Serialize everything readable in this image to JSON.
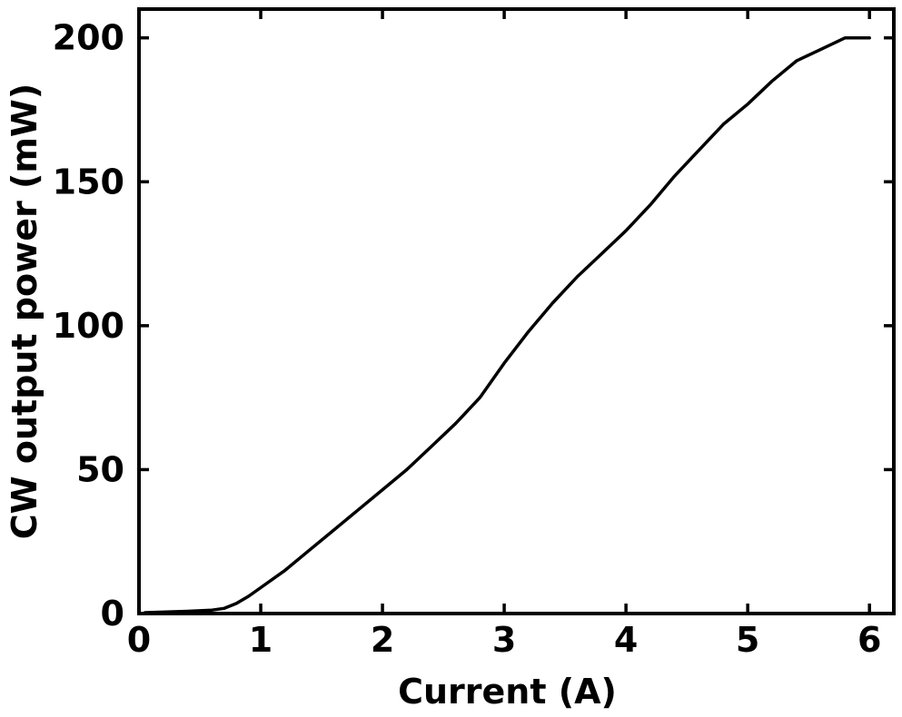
{
  "chart_data": {
    "type": "line",
    "title": "",
    "xlabel": "Current (A)",
    "ylabel": "CW output power (mW)",
    "xlim": [
      0,
      6.2
    ],
    "ylim": [
      0,
      210
    ],
    "xticks": [
      0,
      1,
      2,
      3,
      4,
      5,
      6
    ],
    "yticks": [
      0,
      50,
      100,
      150,
      200
    ],
    "xtick_labels": [
      "0",
      "1",
      "2",
      "3",
      "4",
      "5",
      "6"
    ],
    "ytick_labels": [
      "0",
      "50",
      "100",
      "150",
      "200"
    ],
    "grid": false,
    "legend": "none",
    "line_color": "#000000",
    "series": [
      {
        "x": [
          0.05,
          0.2,
          0.4,
          0.6,
          0.7,
          0.8,
          0.9,
          1.0,
          1.2,
          1.4,
          1.6,
          1.8,
          2.0,
          2.2,
          2.4,
          2.6,
          2.8,
          3.0,
          3.2,
          3.4,
          3.6,
          3.8,
          4.0,
          4.2,
          4.4,
          4.6,
          4.8,
          5.0,
          5.2,
          5.4,
          5.6,
          5.8,
          5.9,
          6.0
        ],
        "y": [
          0.3,
          0.5,
          0.8,
          1.2,
          1.8,
          3.5,
          6,
          9,
          15,
          22,
          29,
          36,
          43,
          50,
          58,
          66,
          75,
          87,
          98,
          108,
          117,
          125,
          133,
          142,
          152,
          161,
          170,
          177,
          185,
          192,
          196,
          200,
          200,
          200
        ]
      }
    ]
  }
}
